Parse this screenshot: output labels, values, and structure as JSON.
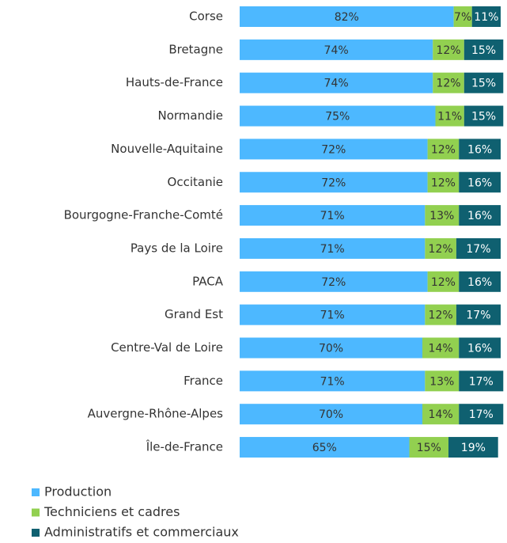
{
  "chart_data": {
    "type": "stacked-bar",
    "orientation": "horizontal",
    "categories": [
      "Corse",
      "Bretagne",
      "Hauts-de-France",
      "Normandie",
      "Nouvelle-Aquitaine",
      "Occitanie",
      "Bourgogne-Franche-Comté",
      "Pays de la Loire",
      "PACA",
      "Grand Est",
      "Centre-Val de Loire",
      "France",
      "Auvergne-Rhône-Alpes",
      "Île-de-France"
    ],
    "xlim": [
      0,
      100
    ],
    "series": [
      {
        "name": "Production",
        "color": "#4db8ff",
        "label_color": "#333333",
        "values": [
          82,
          74,
          74,
          75,
          72,
          72,
          71,
          71,
          72,
          71,
          70,
          71,
          70,
          65
        ],
        "value_labels": [
          "82%",
          "74%",
          "74%",
          "75%",
          "72%",
          "72%",
          "71%",
          "71%",
          "72%",
          "71%",
          "70%",
          "71%",
          "70%",
          "65%"
        ]
      },
      {
        "name": "Techniciens et cadres",
        "color": "#92d050",
        "label_color": "#333333",
        "values": [
          7,
          12,
          12,
          11,
          12,
          12,
          13,
          12,
          12,
          12,
          14,
          13,
          14,
          15
        ],
        "value_labels": [
          "7%",
          "12%",
          "12%",
          "11%",
          "12%",
          "12%",
          "13%",
          "12%",
          "12%",
          "12%",
          "14%",
          "13%",
          "14%",
          "15%"
        ]
      },
      {
        "name": "Administratifs et commerciaux",
        "color": "#0f6070",
        "label_color": "#ffffff",
        "values": [
          11,
          15,
          15,
          15,
          16,
          16,
          16,
          17,
          16,
          17,
          16,
          17,
          17,
          19
        ],
        "value_labels": [
          "11%",
          "15%",
          "15%",
          "15%",
          "16%",
          "16%",
          "16%",
          "17%",
          "16%",
          "17%",
          "16%",
          "17%",
          "17%",
          "19%"
        ]
      }
    ],
    "legend": "bottom-left"
  }
}
